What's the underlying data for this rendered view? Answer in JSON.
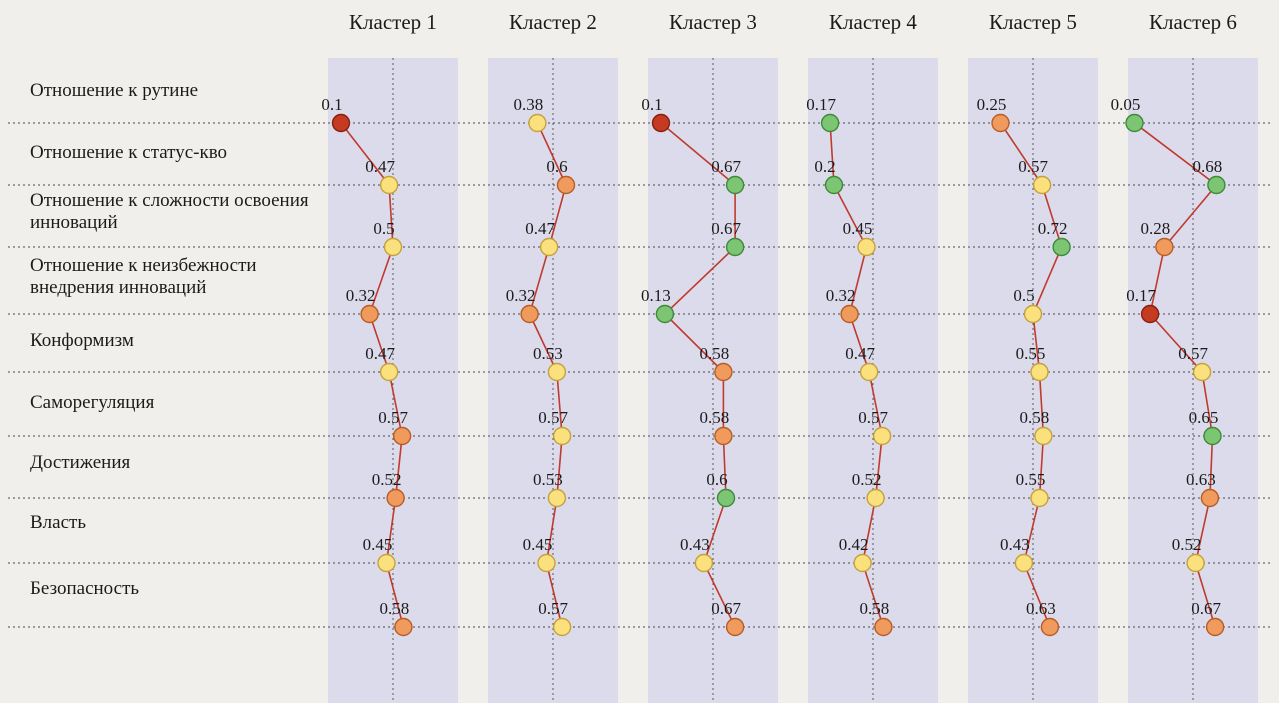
{
  "chart_data": {
    "type": "line",
    "title": "",
    "description": "Profiles of six clusters across nine attitude and value scales; each cluster column shows mean values (0-1) per scale with colored markers connected by a red line",
    "value_range": [
      0,
      1
    ],
    "grid": "dashed",
    "legend_position": "none",
    "line_color": "#c03a2e",
    "band_color": "#dcdbeb",
    "page_background": "#f1efec",
    "grid_color": "#4a4a4a",
    "palette": {
      "red": {
        "fill": "#c43b21",
        "stroke": "#87200f"
      },
      "orange": {
        "fill": "#f09a5e",
        "stroke": "#b65e26"
      },
      "yellow": {
        "fill": "#fbe07e",
        "stroke": "#c3a23e"
      },
      "green": {
        "fill": "#7cc573",
        "stroke": "#3e8a3a"
      }
    },
    "rows": [
      {
        "label": "Отношение к рутине"
      },
      {
        "label": "Отношение к статус-кво"
      },
      {
        "label": "Отношение к сложности освоения инноваций"
      },
      {
        "label": "Отношение к неизбежности внедрения инноваций"
      },
      {
        "label": "Конформизм"
      },
      {
        "label": "Саморегуляция"
      },
      {
        "label": "Достижения"
      },
      {
        "label": "Власть"
      },
      {
        "label": "Безопасность"
      }
    ],
    "clusters": [
      {
        "name": "Кластер 1",
        "points": [
          {
            "value": 0.1,
            "label": "0.1",
            "color": "red"
          },
          {
            "value": 0.47,
            "label": "0.47",
            "color": "yellow"
          },
          {
            "value": 0.5,
            "label": "0.5",
            "color": "yellow"
          },
          {
            "value": 0.32,
            "label": "0.32",
            "color": "orange"
          },
          {
            "value": 0.47,
            "label": "0.47",
            "color": "yellow"
          },
          {
            "value": 0.57,
            "label": "0.57",
            "color": "orange"
          },
          {
            "value": 0.52,
            "label": "0.52",
            "color": "orange"
          },
          {
            "value": 0.45,
            "label": "0.45",
            "color": "yellow"
          },
          {
            "value": 0.58,
            "label": "0.58",
            "color": "orange"
          }
        ]
      },
      {
        "name": "Кластер 2",
        "points": [
          {
            "value": 0.38,
            "label": "0.38",
            "color": "yellow"
          },
          {
            "value": 0.6,
            "label": "0.6",
            "color": "orange"
          },
          {
            "value": 0.47,
            "label": "0.47",
            "color": "yellow"
          },
          {
            "value": 0.32,
            "label": "0.32",
            "color": "orange"
          },
          {
            "value": 0.53,
            "label": "0.53",
            "color": "yellow"
          },
          {
            "value": 0.57,
            "label": "0.57",
            "color": "yellow"
          },
          {
            "value": 0.53,
            "label": "0.53",
            "color": "yellow"
          },
          {
            "value": 0.45,
            "label": "0.45",
            "color": "yellow"
          },
          {
            "value": 0.57,
            "label": "0.57",
            "color": "yellow"
          }
        ]
      },
      {
        "name": "Кластер 3",
        "points": [
          {
            "value": 0.1,
            "label": "0.1",
            "color": "red"
          },
          {
            "value": 0.67,
            "label": "0.67",
            "color": "green"
          },
          {
            "value": 0.67,
            "label": "0.67",
            "color": "green"
          },
          {
            "value": 0.13,
            "label": "0.13",
            "color": "green"
          },
          {
            "value": 0.58,
            "label": "0.58",
            "color": "orange"
          },
          {
            "value": 0.58,
            "label": "0.58",
            "color": "orange"
          },
          {
            "value": 0.6,
            "label": "0.6",
            "color": "green"
          },
          {
            "value": 0.43,
            "label": "0.43",
            "color": "yellow"
          },
          {
            "value": 0.67,
            "label": "0.67",
            "color": "orange"
          }
        ]
      },
      {
        "name": "Кластер 4",
        "points": [
          {
            "value": 0.17,
            "label": "0.17",
            "color": "green"
          },
          {
            "value": 0.2,
            "label": "0.2",
            "color": "green"
          },
          {
            "value": 0.45,
            "label": "0.45",
            "color": "yellow"
          },
          {
            "value": 0.32,
            "label": "0.32",
            "color": "orange"
          },
          {
            "value": 0.47,
            "label": "0.47",
            "color": "yellow"
          },
          {
            "value": 0.57,
            "label": "0.57",
            "color": "yellow"
          },
          {
            "value": 0.52,
            "label": "0.52",
            "color": "yellow"
          },
          {
            "value": 0.42,
            "label": "0.42",
            "color": "yellow"
          },
          {
            "value": 0.58,
            "label": "0.58",
            "color": "orange"
          }
        ]
      },
      {
        "name": "Кластер 5",
        "points": [
          {
            "value": 0.25,
            "label": "0.25",
            "color": "orange"
          },
          {
            "value": 0.57,
            "label": "0.57",
            "color": "yellow"
          },
          {
            "value": 0.72,
            "label": "0.72",
            "color": "green"
          },
          {
            "value": 0.5,
            "label": "0.5",
            "color": "yellow"
          },
          {
            "value": 0.55,
            "label": "0.55",
            "color": "yellow"
          },
          {
            "value": 0.58,
            "label": "0.58",
            "color": "yellow"
          },
          {
            "value": 0.55,
            "label": "0.55",
            "color": "yellow"
          },
          {
            "value": 0.43,
            "label": "0.43",
            "color": "yellow"
          },
          {
            "value": 0.63,
            "label": "0.63",
            "color": "orange"
          }
        ]
      },
      {
        "name": "Кластер 6",
        "points": [
          {
            "value": 0.05,
            "label": "0.05",
            "color": "green"
          },
          {
            "value": 0.68,
            "label": "0.68",
            "color": "green"
          },
          {
            "value": 0.28,
            "label": "0.28",
            "color": "orange"
          },
          {
            "value": 0.17,
            "label": "0.17",
            "color": "red"
          },
          {
            "value": 0.57,
            "label": "0.57",
            "color": "yellow"
          },
          {
            "value": 0.65,
            "label": "0.65",
            "color": "green"
          },
          {
            "value": 0.63,
            "label": "0.63",
            "color": "orange"
          },
          {
            "value": 0.52,
            "label": "0.52",
            "color": "yellow"
          },
          {
            "value": 0.67,
            "label": "0.67",
            "color": "orange"
          }
        ]
      }
    ]
  }
}
